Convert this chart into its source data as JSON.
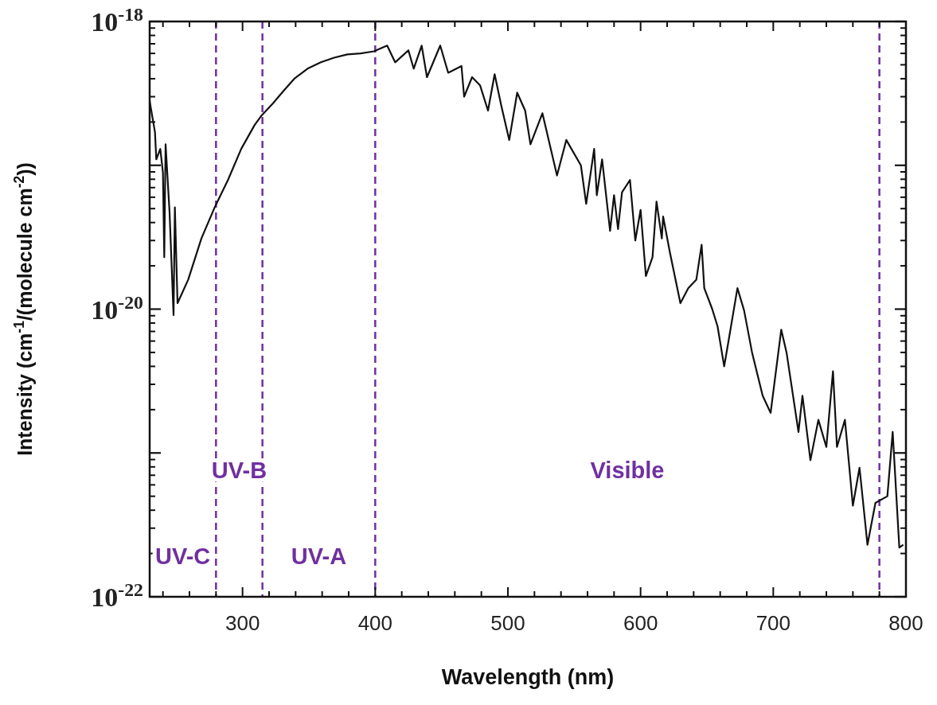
{
  "chart_data": {
    "type": "line",
    "xlabel": "Wavelength (nm)",
    "ylabel": "Intensity (cm$^{-1}$/(molecule cm$^{-2}$))",
    "log": "y",
    "grid": false,
    "marker": "none",
    "line_style": "solid",
    "xlim": [
      230,
      800
    ],
    "xticks": [
      {
        "value": 240,
        "label": null
      },
      {
        "value": 260,
        "label": null
      },
      {
        "value": 280,
        "label": null
      },
      300,
      {
        "value": 320,
        "label": null
      },
      {
        "value": 340,
        "label": null
      },
      {
        "value": 360,
        "label": null
      },
      {
        "value": 380,
        "label": null
      },
      400,
      {
        "value": 420,
        "label": null
      },
      {
        "value": 440,
        "label": null
      },
      {
        "value": 460,
        "label": null
      },
      {
        "value": 480,
        "label": null
      },
      500,
      {
        "value": 520,
        "label": null
      },
      {
        "value": 540,
        "label": null
      },
      {
        "value": 560,
        "label": null
      },
      {
        "value": 580,
        "label": null
      },
      600,
      {
        "value": 620,
        "label": null
      },
      {
        "value": 640,
        "label": null
      },
      {
        "value": 660,
        "label": null
      },
      {
        "value": 680,
        "label": null
      },
      700,
      {
        "value": 720,
        "label": null
      },
      {
        "value": 740,
        "label": null
      },
      {
        "value": 760,
        "label": null
      },
      {
        "value": 780,
        "label": null
      },
      800
    ],
    "ylim": [
      1e-22,
      1e-18
    ],
    "yticks": [
      {
        "value": 1e-22,
        "label": "10$^{-22}$"
      },
      {
        "value": 1e-21,
        "label": null
      },
      {
        "value": 1e-20,
        "label": "10$^{-20}$"
      },
      {
        "value": 1e-19,
        "label": null
      },
      {
        "value": 1e-18,
        "label": "10$^{-18}$"
      }
    ],
    "series": [
      {
        "color": "#111111",
        "x": [
          230,
          234,
          235,
          238,
          240,
          241,
          242,
          245,
          248,
          249,
          251,
          259,
          269,
          279,
          289,
          299,
          309,
          314,
          323,
          331,
          339,
          349,
          359,
          369,
          379,
          389,
          399,
          409,
          415,
          425,
          429,
          435,
          439,
          449,
          455,
          465,
          467,
          473,
          479,
          485,
          490,
          495,
          501,
          507,
          513,
          517,
          526,
          537,
          544,
          555,
          559,
          565,
          567,
          571,
          577,
          580,
          583,
          586,
          592,
          596,
          600,
          604,
          609,
          612,
          616,
          617,
          622,
          630,
          636,
          642,
          646,
          648,
          654,
          658,
          663,
          666,
          673,
          678,
          684,
          692,
          698,
          706,
          710,
          719,
          722,
          728,
          734,
          740,
          745,
          748,
          754,
          760,
          765,
          771,
          777,
          786,
          790,
          795,
          798
        ],
        "values": [
          2.8e-19,
          1.7e-19,
          1.1e-19,
          1.3e-19,
          8.9e-20,
          2.3e-20,
          1.4e-19,
          4.7e-20,
          9.1e-21,
          5.1e-20,
          1.1e-20,
          1.6e-20,
          3.1e-20,
          5.1e-20,
          7.9e-20,
          1.3e-19,
          1.9e-19,
          2.2e-19,
          2.7e-19,
          3.3e-19,
          4e-19,
          4.7e-19,
          5.2e-19,
          5.6e-19,
          5.9e-19,
          6e-19,
          6.2e-19,
          6.8e-19,
          5.2e-19,
          6.3e-19,
          4.7e-19,
          6.8e-19,
          4.1e-19,
          6.8e-19,
          4.4e-19,
          4.9e-19,
          3e-19,
          4.1e-19,
          3.6e-19,
          2.4e-19,
          4.3e-19,
          2.6e-19,
          1.5e-19,
          3.2e-19,
          2.4e-19,
          1.4e-19,
          2.3e-19,
          8.5e-20,
          1.5e-19,
          1e-19,
          5.4e-20,
          1.3e-19,
          6.2e-20,
          1.1e-19,
          3.5e-20,
          6.2e-20,
          3.6e-20,
          6.5e-20,
          7.9e-20,
          3e-20,
          4.9e-20,
          1.7e-20,
          2.3e-20,
          5.6e-20,
          3.1e-20,
          4.4e-20,
          2.5e-20,
          1.1e-20,
          1.4e-20,
          1.6e-20,
          2.8e-20,
          1.4e-20,
          1e-20,
          7.6e-21,
          4e-21,
          5.8e-21,
          1.4e-20,
          9.8e-21,
          5e-21,
          2.5e-21,
          1.9e-21,
          7.2e-21,
          5e-21,
          1.4e-21,
          2.5e-21,
          8.9e-22,
          1.7e-21,
          1.1e-21,
          3.7e-21,
          1.1e-21,
          1.7e-21,
          4.3e-22,
          7.9e-22,
          2.3e-22,
          4.5e-22,
          5e-22,
          1.4e-21,
          2.2e-22,
          2.3e-22
        ]
      }
    ],
    "ref_lines": [
      {
        "axis": "x",
        "value": 280,
        "color": "#7030a0",
        "line_style": "dashed"
      },
      {
        "axis": "x",
        "value": 315,
        "color": "#7030a0",
        "line_style": "dashed"
      },
      {
        "axis": "x",
        "value": 400,
        "color": "#7030a0",
        "line_style": "dashed"
      },
      {
        "axis": "x",
        "value": 780,
        "color": "#7030a0",
        "line_style": "dashed"
      }
    ],
    "annotations": [
      "UV-C",
      "UV-B",
      "UV-A",
      "Visible"
    ]
  }
}
